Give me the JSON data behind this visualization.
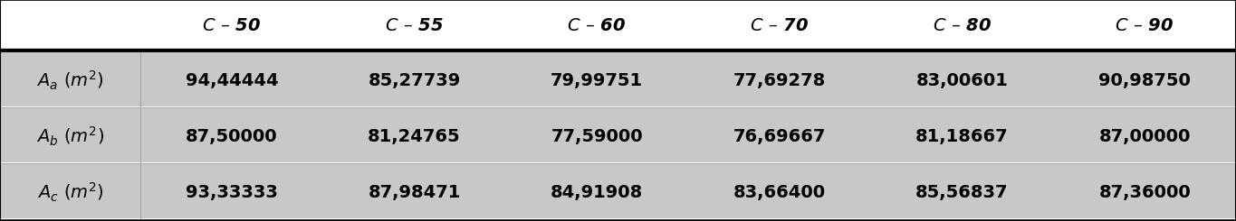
{
  "columns": [
    "C – 50",
    "C – 55",
    "C – 60",
    "C – 70",
    "C – 80",
    "C – 90"
  ],
  "rows": [
    {
      "label_main": "A_a",
      "label_sub": "a",
      "values": [
        "94,44444",
        "85,27739",
        "79,99751",
        "77,69278",
        "83,00601",
        "90,98750"
      ]
    },
    {
      "label_main": "A_b",
      "label_sub": "b",
      "values": [
        "87,50000",
        "81,24765",
        "77,59000",
        "76,69667",
        "81,18667",
        "87,00000"
      ]
    },
    {
      "label_main": "A_c",
      "label_sub": "c",
      "values": [
        "93,33333",
        "87,98471",
        "84,91908",
        "83,66400",
        "85,56837",
        "87,36000"
      ]
    }
  ],
  "header_bg": "#ffffff",
  "data_row_bg": "#c8c8c8",
  "separator_bg": "#ffffff",
  "border_color": "#000000",
  "text_color": "#000000",
  "figsize": [
    13.65,
    2.45
  ],
  "dpi": 100
}
